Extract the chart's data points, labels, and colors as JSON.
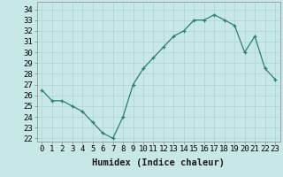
{
  "x": [
    0,
    1,
    2,
    3,
    4,
    5,
    6,
    7,
    8,
    9,
    10,
    11,
    12,
    13,
    14,
    15,
    16,
    17,
    18,
    19,
    20,
    21,
    22,
    23
  ],
  "y": [
    26.5,
    25.5,
    25.5,
    25.0,
    24.5,
    23.5,
    22.5,
    22.0,
    24.0,
    27.0,
    28.5,
    29.5,
    30.5,
    31.5,
    32.0,
    33.0,
    33.0,
    33.5,
    33.0,
    32.5,
    30.0,
    31.5,
    28.5,
    27.5
  ],
  "line_color": "#2e7d6e",
  "marker": "+",
  "bg_color": "#c8e8e8",
  "grid_color": "#b0d8d8",
  "xlabel": "Humidex (Indice chaleur)",
  "ylabel_ticks": [
    22,
    23,
    24,
    25,
    26,
    27,
    28,
    29,
    30,
    31,
    32,
    33,
    34
  ],
  "ylim": [
    21.7,
    34.7
  ],
  "xlim": [
    -0.5,
    23.5
  ],
  "tick_fontsize": 6.5,
  "xlabel_fontsize": 7.5,
  "spine_color": "#888888"
}
